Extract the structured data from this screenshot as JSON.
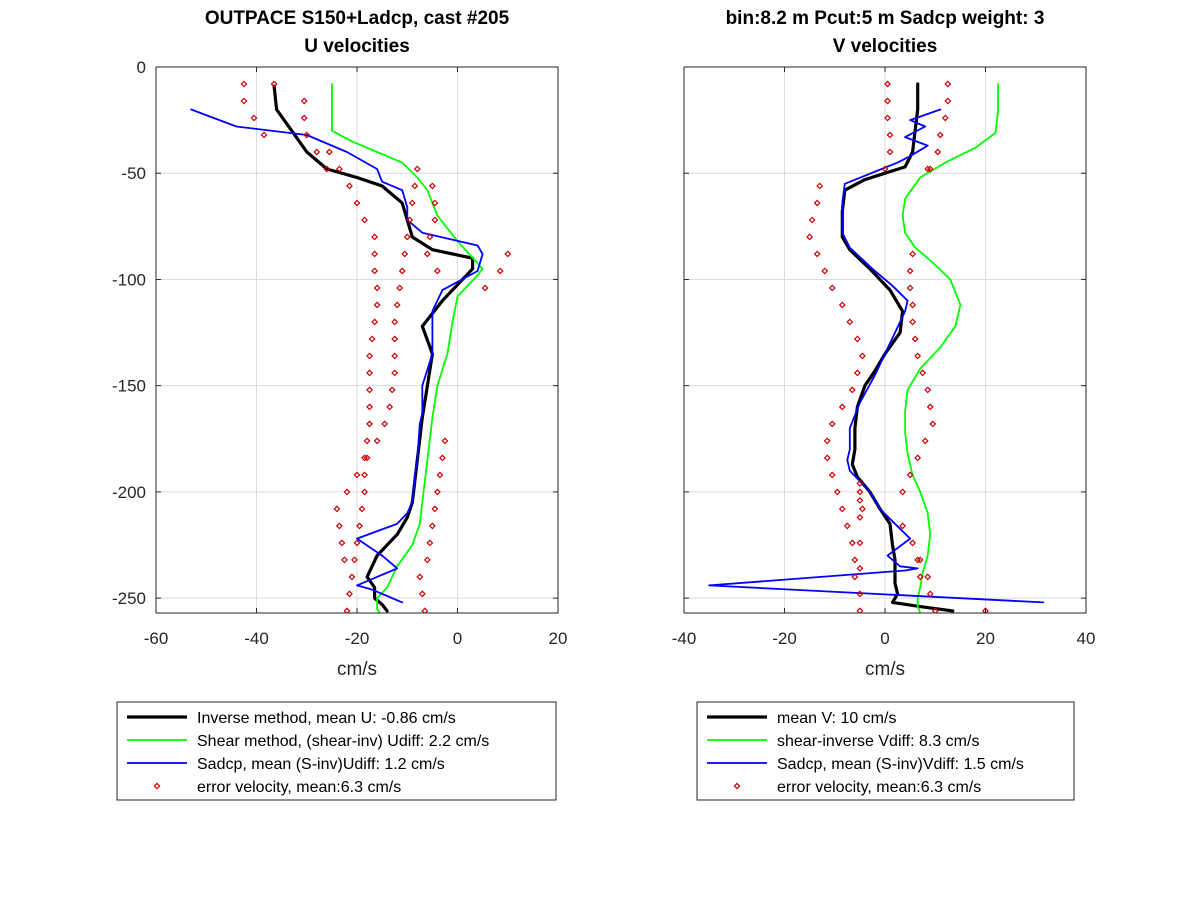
{
  "chart_data": [
    {
      "type": "line",
      "title": [
        "OUTPACE S150+Ladcp, cast #205",
        "U velocities"
      ],
      "xlabel": "cm/s",
      "ylabel": "",
      "xlim": [
        -60,
        20
      ],
      "ylim": [
        -257,
        0
      ],
      "xticks": [
        "-60",
        "-40",
        "-20",
        "0",
        "20"
      ],
      "yticks": [
        "0",
        "-50",
        "-100",
        "-150",
        "-200",
        "-250"
      ],
      "xtick_values": [
        -60,
        -40,
        -20,
        0,
        20
      ],
      "ytick_values": [
        0,
        -50,
        -100,
        -150,
        -200,
        -250
      ],
      "grid": true,
      "legend_position": "below",
      "series": [
        {
          "name": "Inverse method, mean U:  -0.86 cm/s",
          "color": "#000000",
          "style": "line-thick",
          "x": [
            -36.5,
            -36,
            -33,
            -30,
            -26,
            -20,
            -15,
            -11,
            -10,
            -9,
            -5,
            3,
            3,
            -3,
            -7,
            -5,
            -6,
            -7,
            -7.5,
            -8,
            -8.5,
            -9,
            -10,
            -12,
            -16,
            -18,
            -16.5,
            -16.5,
            -15,
            -14
          ],
          "y": [
            -9,
            -20,
            -30,
            -40,
            -48,
            -52,
            -56,
            -64,
            -72,
            -80,
            -86,
            -90,
            -95,
            -110,
            -122,
            -135,
            -150,
            -165,
            -175,
            -185,
            -195,
            -205,
            -212,
            -220,
            -230,
            -240,
            -245,
            -250,
            -253,
            -256
          ]
        },
        {
          "name": "Shear method, (shear-inv)  Udiff:  2.2 cm/s",
          "color": "#00ff00",
          "style": "line",
          "x": [
            -25,
            -25,
            -21,
            -16,
            -11,
            -8,
            -6,
            -4,
            0,
            5,
            4,
            0,
            -1,
            -2,
            -4,
            -5,
            -5.5,
            -6,
            -6.5,
            -7,
            -7.5,
            -9,
            -12,
            -14,
            -16,
            -16,
            -15.5
          ],
          "y": [
            -8,
            -30,
            -35,
            -40,
            -45,
            -52,
            -58,
            -70,
            -82,
            -95,
            -98,
            -108,
            -120,
            -135,
            -150,
            -165,
            -175,
            -185,
            -195,
            -205,
            -215,
            -225,
            -235,
            -245,
            -250,
            -255,
            -257
          ]
        },
        {
          "name": "Sadcp, mean (S-inv)Udiff: 1.2 cm/s",
          "color": "#0000ff",
          "style": "line",
          "x": [
            -53,
            -44,
            -30,
            -22,
            -16,
            -15,
            -11,
            -10,
            -10,
            -7,
            4,
            5,
            4,
            -3,
            -5,
            -5,
            -7,
            -7,
            -7.5,
            -8,
            -8.5,
            -9,
            -10,
            -12,
            -20,
            -15,
            -12,
            -20,
            -17,
            -11
          ],
          "y": [
            -20,
            -28,
            -32,
            -40,
            -48,
            -54,
            -58,
            -66,
            -72,
            -78,
            -84,
            -88,
            -96,
            -105,
            -115,
            -135,
            -150,
            -163,
            -168,
            -185,
            -192,
            -205,
            -210,
            -215,
            -222,
            -230,
            -236,
            -244,
            -246,
            -252
          ]
        },
        {
          "name": "error velocity, mean:6.3 cm/s",
          "color": "#cc0000",
          "style": "marker-diamond",
          "x": [
            -42.5,
            -42.5,
            -40.5,
            -38.5,
            -36.5,
            -30.5,
            -30.5,
            -30,
            -28,
            -26,
            -25.5,
            -23.5,
            -21.5,
            -20,
            -18.5,
            -16.5,
            -16.5,
            -16.5,
            -16,
            -16,
            -16.5,
            -17,
            -17.5,
            -17.5,
            -17.5,
            -17.5,
            -17.5,
            -18,
            -18.5,
            -18.5,
            -18.5,
            -19,
            -19.5,
            -20,
            -20.5,
            -21,
            -21.5,
            -22,
            -22.5,
            -23,
            -23.5,
            -24,
            -22,
            -20,
            -18,
            -16,
            -14.5,
            -13.5,
            -13,
            -12.5,
            -12.5,
            -12.5,
            -12.5,
            -12,
            -11.5,
            -11,
            -10.5,
            -10,
            -9.5,
            -9,
            -8.5,
            -8,
            -7.5,
            -7,
            -6.5,
            -6,
            -5.5,
            -5,
            -4.5,
            -4,
            -3.5,
            -3,
            -2.5,
            -5,
            -4.5,
            -4.5,
            -5.5,
            -6,
            -4,
            10,
            8.5,
            5.5
          ],
          "y": [
            -8,
            -16,
            -24,
            -32,
            -8,
            -16,
            -24,
            -32,
            -40,
            -48,
            -40,
            -48,
            -56,
            -64,
            -72,
            -80,
            -88,
            -96,
            -104,
            -112,
            -120,
            -128,
            -136,
            -144,
            -152,
            -160,
            -168,
            -176,
            -184,
            -192,
            -200,
            -208,
            -216,
            -224,
            -232,
            -240,
            -248,
            -256,
            -232,
            -224,
            -216,
            -208,
            -200,
            -192,
            -184,
            -176,
            -168,
            -160,
            -152,
            -144,
            -136,
            -128,
            -120,
            -112,
            -104,
            -96,
            -88,
            -80,
            -72,
            -64,
            -56,
            -48,
            -240,
            -248,
            -256,
            -232,
            -224,
            -216,
            -208,
            -200,
            -192,
            -184,
            -176,
            -56,
            -64,
            -72,
            -80,
            -88,
            -96,
            -88,
            -96,
            -104
          ]
        }
      ],
      "legend": [
        "Inverse method, mean U:  -0.86 cm/s",
        "Shear method, (shear-inv)  Udiff:  2.2 cm/s",
        "Sadcp, mean (S-inv)Udiff: 1.2 cm/s",
        "error velocity, mean:6.3 cm/s"
      ]
    },
    {
      "type": "line",
      "title": [
        "bin:8.2 m  Pcut:5 m  Sadcp weight: 3",
        "V velocities"
      ],
      "xlabel": "cm/s",
      "ylabel": "",
      "xlim": [
        -40,
        40
      ],
      "ylim": [
        -257,
        0
      ],
      "xticks": [
        "-40",
        "-20",
        "0",
        "20",
        "40"
      ],
      "yticks": [],
      "xtick_values": [
        -40,
        -20,
        0,
        20,
        40
      ],
      "ytick_values": [
        0,
        -50,
        -100,
        -150,
        -200,
        -250
      ],
      "grid": true,
      "legend_position": "below",
      "series": [
        {
          "name": "mean V:  10 cm/s",
          "color": "#000000",
          "style": "line-thick",
          "x": [
            6.5,
            6.5,
            6,
            5.5,
            4,
            0,
            -4,
            -8,
            -8.5,
            -8.5,
            -7,
            -3,
            1,
            3.5,
            3,
            0,
            -2,
            -4,
            -5.5,
            -6,
            -6,
            -6.5,
            -5.5,
            -3,
            -1,
            1,
            1.5,
            2,
            2,
            2,
            2.5,
            1.5,
            7,
            13.5
          ],
          "y": [
            -8,
            -20,
            -30,
            -40,
            -47,
            -50,
            -53,
            -58,
            -68,
            -80,
            -86,
            -95,
            -105,
            -115,
            -125,
            -135,
            -143,
            -150,
            -160,
            -170,
            -180,
            -187,
            -193,
            -200,
            -208,
            -215,
            -225,
            -232,
            -238,
            -243,
            -248,
            -252,
            -254,
            -256
          ]
        },
        {
          "name": "shear-inverse Vdiff:  8.3 cm/s",
          "color": "#00ff00",
          "style": "line",
          "x": [
            22.5,
            22.5,
            22,
            18,
            12,
            7,
            4,
            3.5,
            4,
            6,
            9.5,
            13,
            15,
            14,
            11,
            7,
            4.5,
            4,
            4,
            4.5,
            5.5,
            7,
            8.5,
            9,
            8.5,
            7.5,
            7,
            6.5,
            6.5,
            7
          ],
          "y": [
            -8,
            -20,
            -31,
            -38,
            -45,
            -52,
            -62,
            -70,
            -78,
            -85,
            -92,
            -100,
            -112,
            -122,
            -132,
            -142,
            -152,
            -162,
            -172,
            -182,
            -192,
            -200,
            -210,
            -220,
            -230,
            -238,
            -245,
            -250,
            -254,
            -257
          ]
        },
        {
          "name": "Sadcp, mean (S-inv)Vdiff: 1.5 cm/s",
          "color": "#0000ff",
          "style": "line",
          "x": [
            11,
            5,
            8,
            4,
            8.5,
            5,
            2.5,
            -8,
            -8.5,
            -8.5,
            -7,
            -2.5,
            1.5,
            4.5,
            4,
            0,
            -2,
            -5,
            -7,
            -7,
            -7.5,
            -7,
            -5,
            -3,
            -1,
            2,
            5,
            0.5,
            3,
            6.5,
            4,
            -35,
            31.5
          ],
          "y": [
            -20,
            -25,
            -28,
            -33,
            -37,
            -42,
            -45,
            -55,
            -64,
            -78,
            -85,
            -95,
            -103,
            -110,
            -115,
            -135,
            -145,
            -158,
            -170,
            -180,
            -185,
            -190,
            -195,
            -200,
            -208,
            -215,
            -222,
            -230,
            -235,
            -236,
            -237,
            -244,
            -252
          ]
        },
        {
          "name": "error velocity, mean:6.3 cm/s",
          "color": "#cc0000",
          "style": "marker-diamond",
          "x": [
            0.5,
            0.5,
            0.5,
            1,
            1,
            0,
            12.5,
            12.5,
            12,
            11,
            10.5,
            9,
            8.5,
            -13,
            -13.5,
            -14.5,
            -15,
            -13.5,
            -12,
            -10.5,
            -8.5,
            -7,
            -5.5,
            -4.5,
            -5.5,
            -6.5,
            -8.5,
            -10.5,
            -11.5,
            -11.5,
            -10.5,
            -9.5,
            -8.5,
            -7.5,
            -6.5,
            -6,
            -6,
            -5,
            -5,
            -5,
            -5,
            -5,
            -5,
            -5,
            5.5,
            5,
            5,
            5.5,
            5.5,
            6,
            6.5,
            7.5,
            8.5,
            9,
            9.5,
            8,
            6.5,
            5,
            3.5,
            6.5,
            7,
            9,
            10,
            8.5,
            7,
            5.5,
            3.5,
            -4.5,
            -5,
            20
          ],
          "y": [
            -8,
            -16,
            -24,
            -32,
            -40,
            -48,
            -8,
            -16,
            -24,
            -32,
            -40,
            -48,
            -48,
            -56,
            -64,
            -72,
            -80,
            -88,
            -96,
            -104,
            -112,
            -120,
            -128,
            -136,
            -144,
            -152,
            -160,
            -168,
            -176,
            -184,
            -192,
            -200,
            -208,
            -216,
            -224,
            -232,
            -240,
            -248,
            -256,
            -236,
            -224,
            -212,
            -204,
            -196,
            -88,
            -96,
            -104,
            -112,
            -120,
            -128,
            -136,
            -144,
            -152,
            -160,
            -168,
            -176,
            -184,
            -192,
            -200,
            -232,
            -240,
            -248,
            -256,
            -240,
            -232,
            -224,
            -216,
            -208,
            -200,
            -256
          ]
        }
      ],
      "legend": [
        "mean V:  10 cm/s",
        "shear-inverse Vdiff:  8.3 cm/s",
        "Sadcp, mean (S-inv)Vdiff: 1.5 cm/s",
        "error velocity, mean:6.3 cm/s"
      ]
    }
  ]
}
